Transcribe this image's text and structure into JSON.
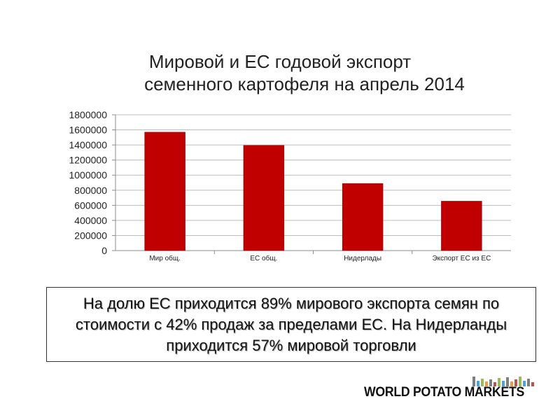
{
  "chart_data": {
    "type": "bar",
    "title_line1": "Мировой и ЕС годовой экспорт",
    "title_line2": "семенного картофеля на апрель  2014",
    "categories": [
      "Мир общ.",
      "ЕС общ.",
      "Нидерлады",
      "Экспорт ЕС из ЕС"
    ],
    "values": [
      1570000,
      1395000,
      890000,
      655000
    ],
    "ylim": [
      0,
      1800000
    ],
    "yticks": [
      "0",
      "200000",
      "400000",
      "600000",
      "800000",
      "1000000",
      "1200000",
      "1400000",
      "1600000",
      "1800000"
    ],
    "grid": true,
    "legend": "none",
    "bar_color": "#c00000"
  },
  "note": {
    "line1": "На долю ЕС приходится 89% мирового экспорта семян по",
    "line2": "стоимости с 42% продаж за пределами ЕС. На Нидерланды",
    "line3": "приходится 57% мировой торговли"
  },
  "logo": {
    "text": "WORLD POTATO MARKETS"
  }
}
